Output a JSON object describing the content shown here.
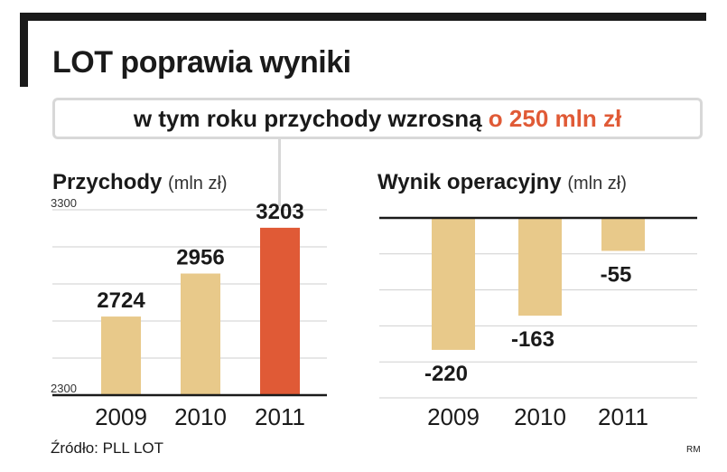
{
  "title": "LOT poprawia wyniki",
  "callout": {
    "text": "w tym roku przychody wzrosną",
    "highlight": "o 250 mln zł"
  },
  "colors": {
    "bar": "#e8c98a",
    "bar_highlight": "#e05a36",
    "grid": "#cfcfcf",
    "axis": "#1a1a1a"
  },
  "chart_data": [
    {
      "type": "bar",
      "title": "Przychody",
      "unit": "(mln zł)",
      "categories": [
        "2009",
        "2010",
        "2011"
      ],
      "values": [
        2724,
        2956,
        3203
      ],
      "highlight_index": 2,
      "ylim": [
        2300,
        3300
      ],
      "yticks": [
        2300,
        3300
      ],
      "grid": true
    },
    {
      "type": "bar",
      "title": "Wynik operacyjny",
      "unit": "(mln zł)",
      "categories": [
        "2009",
        "2010",
        "2011"
      ],
      "values": [
        -220,
        -163,
        -55
      ],
      "ylim": [
        -300,
        0
      ],
      "grid": true
    }
  ],
  "source": "Źródło: PLL LOT",
  "credit": "RM"
}
